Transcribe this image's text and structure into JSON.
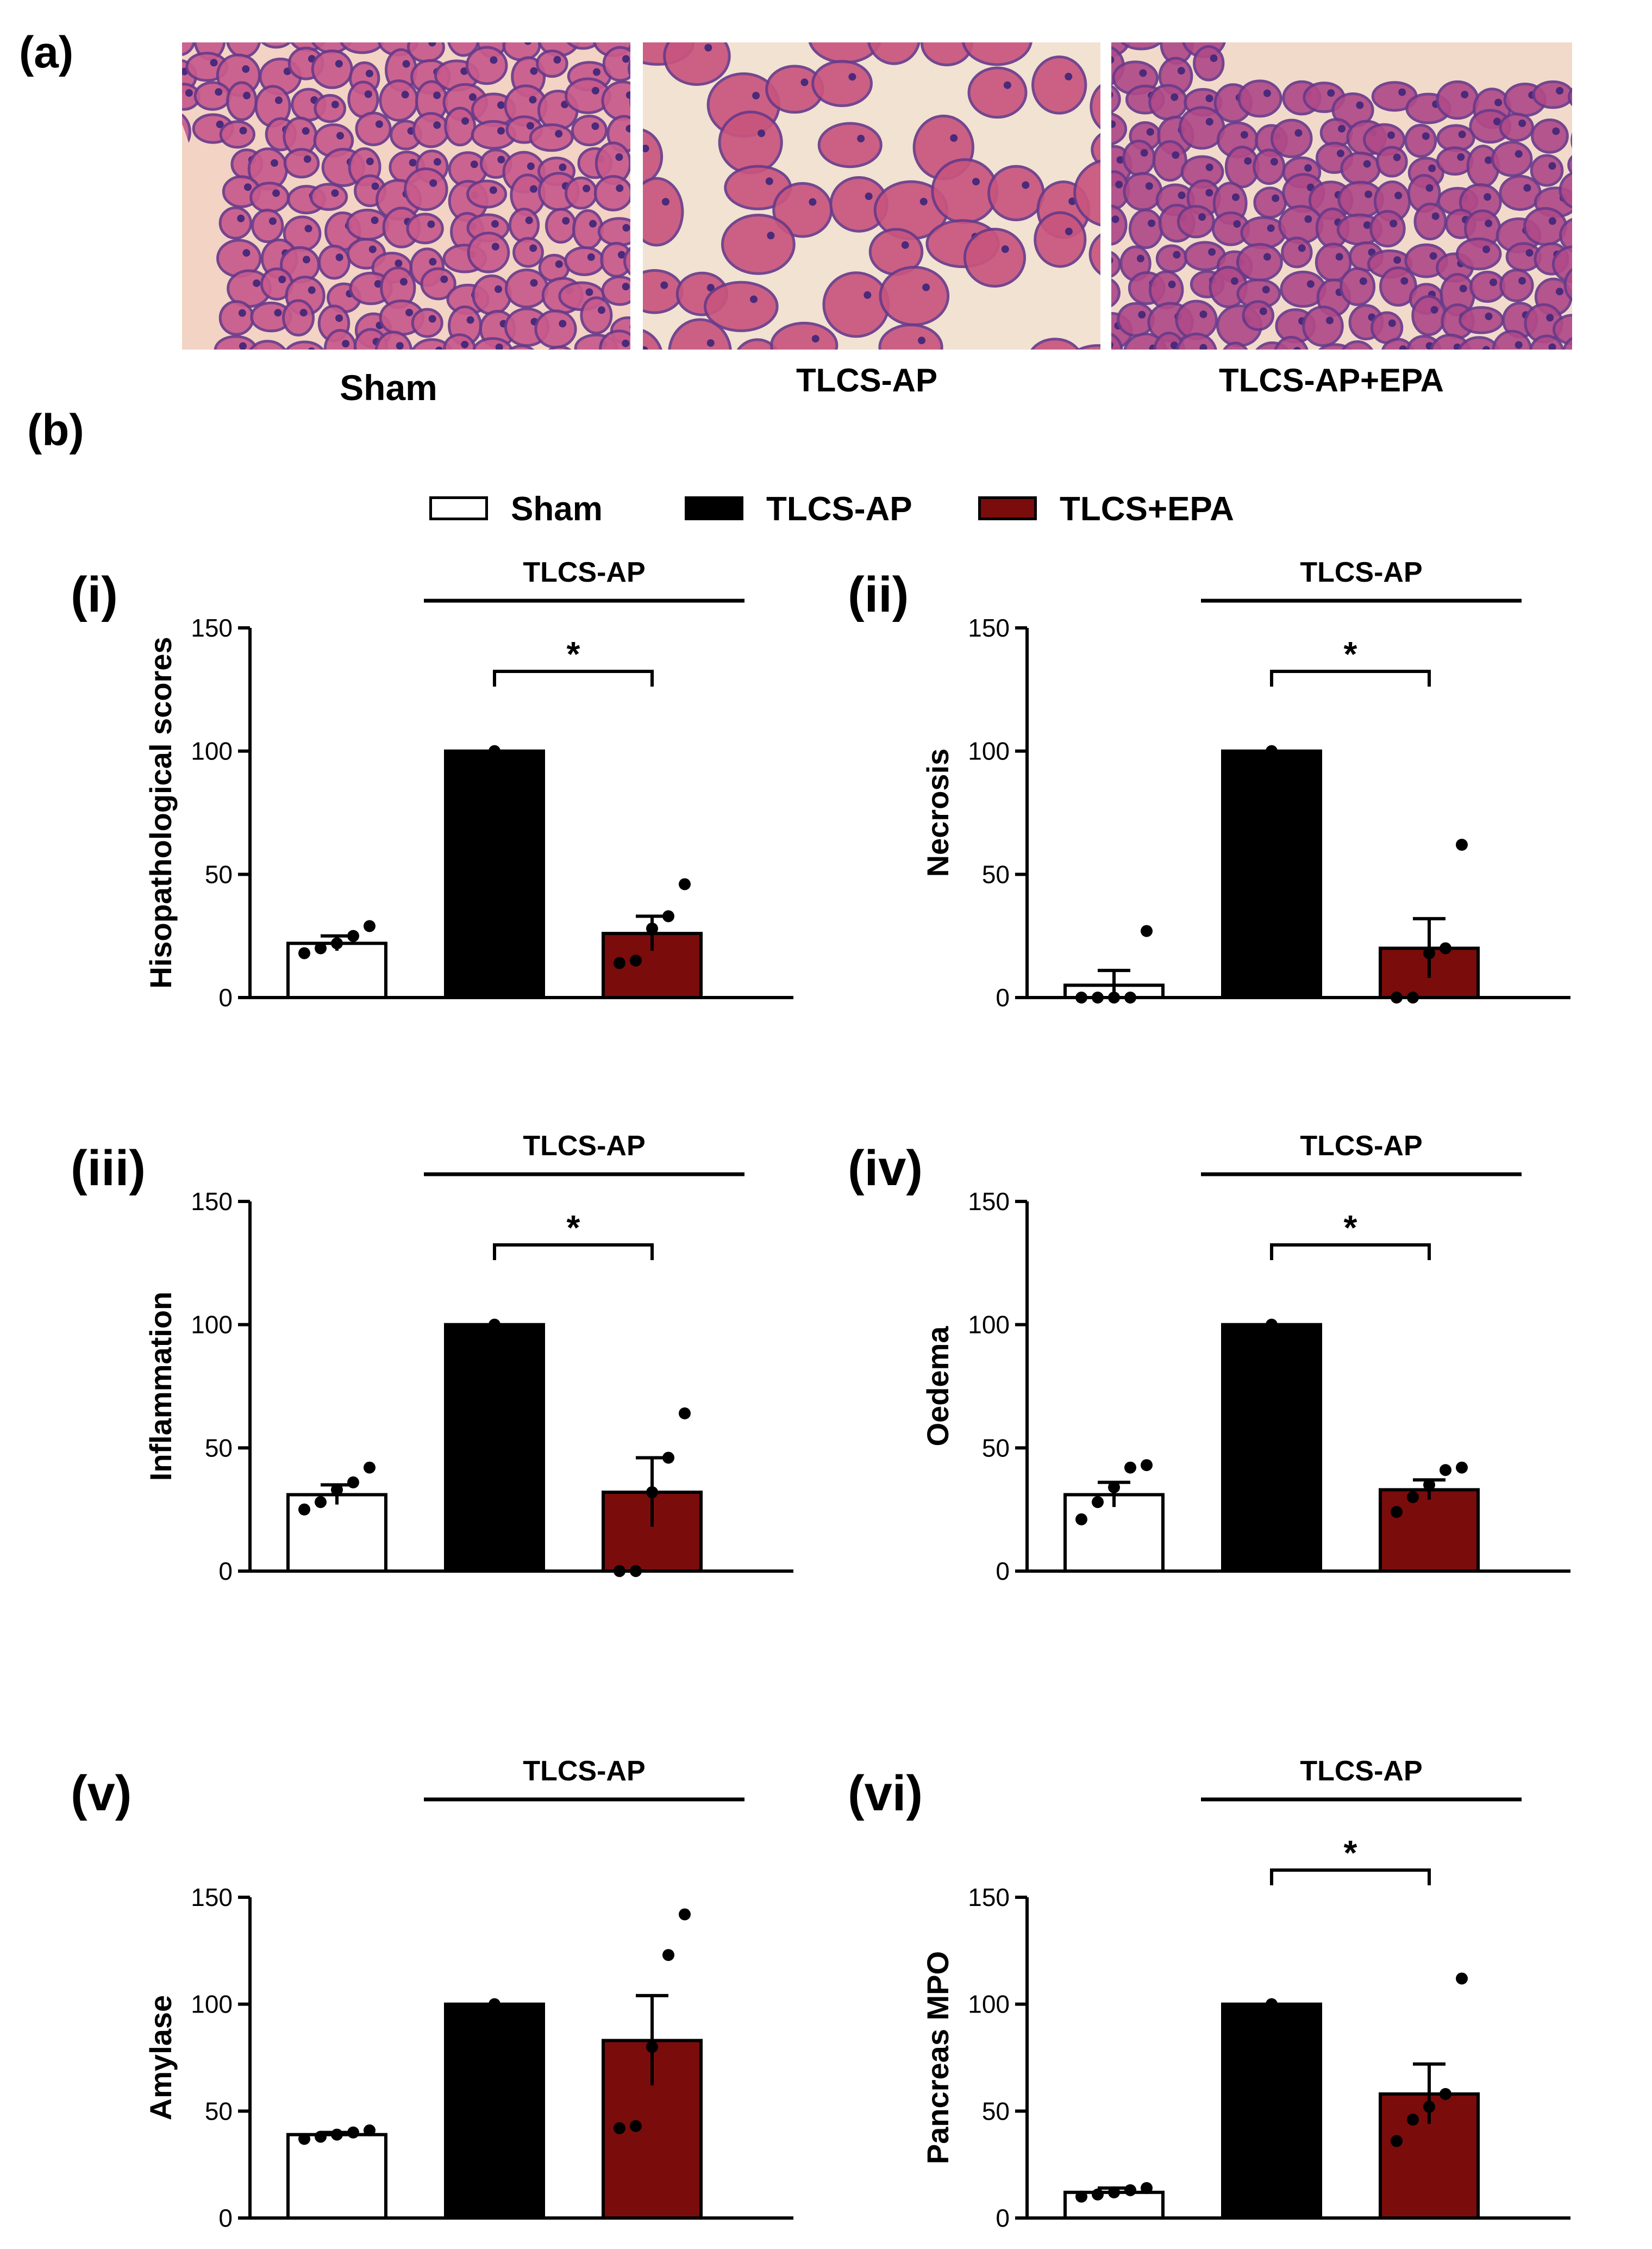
{
  "panel_a": {
    "label": "(a)",
    "images": [
      {
        "caption": "Sham",
        "tissue_color": "#c85a8c",
        "bg_color": "#f3d3c4"
      },
      {
        "caption": "TLCS-AP",
        "tissue_color": "#c8557e",
        "bg_color": "#f1e2d2"
      },
      {
        "caption": "TLCS-AP+EPA",
        "tissue_color": "#b04a88",
        "bg_color": "#f2dacb"
      }
    ]
  },
  "panel_b": {
    "label": "(b)",
    "legend": [
      {
        "name": "Sham",
        "color": "#ffffff"
      },
      {
        "name": "TLCS-AP",
        "color": "#000000"
      },
      {
        "name": "TLCS+EPA",
        "color": "#7b0c0c"
      }
    ]
  },
  "chart_data": [
    {
      "panel": "(i)",
      "type": "bar",
      "ylabel": "Hisopathological scores",
      "ylim": [
        0,
        150
      ],
      "yticks": [
        0,
        50,
        100,
        150
      ],
      "group_label": "TLCS-AP",
      "significance": "*",
      "categories": [
        "Sham",
        "TLCS-AP",
        "TLCS+EPA"
      ],
      "values": [
        22,
        100,
        26
      ],
      "sem": [
        3,
        0,
        7
      ],
      "points": [
        [
          18,
          20,
          22,
          25,
          29
        ],
        [
          100
        ],
        [
          14,
          15,
          28,
          33,
          46
        ]
      ]
    },
    {
      "panel": "(ii)",
      "type": "bar",
      "ylabel": "Necrosis",
      "ylim": [
        0,
        150
      ],
      "yticks": [
        0,
        50,
        100,
        150
      ],
      "group_label": "TLCS-AP",
      "significance": "*",
      "categories": [
        "Sham",
        "TLCS-AP",
        "TLCS+EPA"
      ],
      "values": [
        5,
        100,
        20
      ],
      "sem": [
        6,
        0,
        12
      ],
      "points": [
        [
          0,
          0,
          0,
          0,
          27
        ],
        [
          100
        ],
        [
          0,
          0,
          18,
          20,
          62
        ]
      ]
    },
    {
      "panel": "(iii)",
      "type": "bar",
      "ylabel": "Inflammation",
      "ylim": [
        0,
        150
      ],
      "yticks": [
        0,
        50,
        100,
        150
      ],
      "group_label": "TLCS-AP",
      "significance": "*",
      "categories": [
        "Sham",
        "TLCS-AP",
        "TLCS+EPA"
      ],
      "values": [
        31,
        100,
        32
      ],
      "sem": [
        4,
        0,
        14
      ],
      "points": [
        [
          25,
          28,
          33,
          36,
          42
        ],
        [
          100
        ],
        [
          0,
          0,
          32,
          46,
          64
        ]
      ]
    },
    {
      "panel": "(iv)",
      "type": "bar",
      "ylabel": "Oedema",
      "ylim": [
        0,
        150
      ],
      "yticks": [
        0,
        50,
        100,
        150
      ],
      "group_label": "TLCS-AP",
      "significance": "*",
      "categories": [
        "Sham",
        "TLCS-AP",
        "TLCS+EPA"
      ],
      "values": [
        31,
        100,
        33
      ],
      "sem": [
        5,
        0,
        4
      ],
      "points": [
        [
          21,
          28,
          34,
          42,
          43
        ],
        [
          100
        ],
        [
          24,
          30,
          35,
          41,
          42
        ]
      ]
    },
    {
      "panel": "(v)",
      "type": "bar",
      "ylabel": "Amylase",
      "ylim": [
        0,
        150
      ],
      "yticks": [
        0,
        50,
        100,
        150
      ],
      "group_label": "TLCS-AP",
      "significance": "",
      "categories": [
        "Sham",
        "TLCS-AP",
        "TLCS+EPA"
      ],
      "values": [
        39,
        100,
        83
      ],
      "sem": [
        1,
        0,
        21
      ],
      "points": [
        [
          37,
          38,
          39,
          40,
          41
        ],
        [
          100
        ],
        [
          42,
          43,
          80,
          123,
          142
        ]
      ]
    },
    {
      "panel": "(vi)",
      "type": "bar",
      "ylabel": "Pancreas MPO",
      "ylim": [
        0,
        150
      ],
      "yticks": [
        0,
        50,
        100,
        150
      ],
      "group_label": "TLCS-AP",
      "significance": "*",
      "categories": [
        "Sham",
        "TLCS-AP",
        "TLCS+EPA"
      ],
      "values": [
        12,
        100,
        58
      ],
      "sem": [
        2,
        0,
        14
      ],
      "points": [
        [
          10,
          11,
          12,
          13,
          14
        ],
        [
          100
        ],
        [
          36,
          46,
          52,
          58,
          112
        ]
      ]
    }
  ]
}
